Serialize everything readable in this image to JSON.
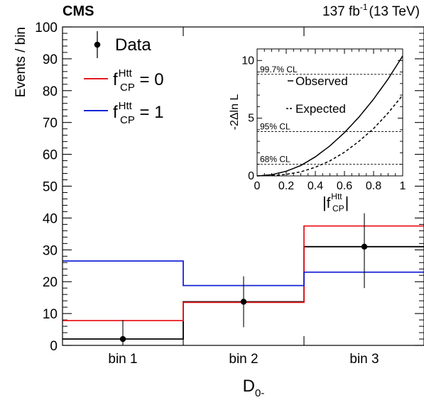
{
  "chart_data": [
    {
      "type": "line",
      "subtype": "step-histogram",
      "experiment_label": "CMS",
      "lumi": {
        "value": "137 fb",
        "exp": "-1",
        "energy": "(13 TeV)"
      },
      "xlabel": {
        "main": "D",
        "sub": "0-"
      },
      "ylabel": "Events / bin",
      "categories": [
        "bin 1",
        "bin 2",
        "bin 3"
      ],
      "ylim": [
        0,
        100
      ],
      "y_ticks": [
        0,
        10,
        20,
        30,
        40,
        50,
        60,
        70,
        80,
        90,
        100
      ],
      "series": [
        {
          "name": "Data",
          "kind": "points",
          "color": "#000000",
          "values": [
            2,
            13.7,
            31
          ],
          "err_low": [
            2,
            8,
            13
          ],
          "err_high": [
            6,
            8,
            10.5
          ]
        },
        {
          "name": "f_CP^Htt = 0",
          "kind": "step",
          "color": "#e8191e",
          "values": [
            7.8,
            13.5,
            37.5
          ]
        },
        {
          "name": "f_CP^Htt = 1",
          "kind": "step",
          "color": "#1725d6",
          "values": [
            26.5,
            18.8,
            23
          ]
        },
        {
          "name": "",
          "kind": "step",
          "color": "#000000",
          "values": [
            2,
            13.7,
            31
          ]
        }
      ],
      "legend": {
        "position": "top-left",
        "entries": [
          {
            "marker": "point",
            "color": "#000000",
            "text": "Data"
          },
          {
            "marker": "line",
            "color": "#e8191e",
            "main": "f",
            "sup": "Htt",
            "sub": "CP",
            "rest": " = 0"
          },
          {
            "marker": "line",
            "color": "#1725d6",
            "main": "f",
            "sup": "Htt",
            "sub": "CP",
            "rest": " = 1"
          }
        ]
      }
    },
    {
      "type": "line",
      "subtype": "inset-likelihood-scan",
      "xlabel": {
        "main": "f",
        "sup": "Htt",
        "sub": "CP"
      },
      "ylabel": "-2Δln L",
      "xlim": [
        0,
        1
      ],
      "ylim": [
        0,
        11
      ],
      "x_ticks": [
        0,
        0.2,
        0.4,
        0.6,
        0.8,
        1
      ],
      "x_tick_labels": [
        "0",
        "0.2",
        "0.4",
        "0.6",
        "0.8",
        "1"
      ],
      "y_ticks": [
        0,
        5,
        10
      ],
      "cl_lines": [
        {
          "y": 1.0,
          "label": "68% CL"
        },
        {
          "y": 3.84,
          "label": "95% CL"
        },
        {
          "y": 8.8,
          "label": "99.7% CL"
        }
      ],
      "series": [
        {
          "name": "Observed",
          "style": "solid",
          "x": [
            0,
            0.1,
            0.2,
            0.3,
            0.4,
            0.5,
            0.6,
            0.7,
            0.8,
            0.9,
            1.0
          ],
          "y": [
            0,
            0.1,
            0.4,
            0.9,
            1.65,
            2.6,
            3.75,
            5.1,
            6.65,
            8.4,
            10.4
          ]
        },
        {
          "name": "Expected",
          "style": "dashed",
          "x": [
            0,
            0.1,
            0.2,
            0.3,
            0.4,
            0.5,
            0.6,
            0.7,
            0.8,
            0.9,
            1.0
          ],
          "y": [
            0,
            0.03,
            0.13,
            0.35,
            0.75,
            1.3,
            2.05,
            3.0,
            4.1,
            5.45,
            7.0
          ]
        }
      ],
      "legend_entries": [
        {
          "style": "solid",
          "text": "Observed"
        },
        {
          "style": "dashed",
          "text": "Expected"
        }
      ]
    }
  ]
}
